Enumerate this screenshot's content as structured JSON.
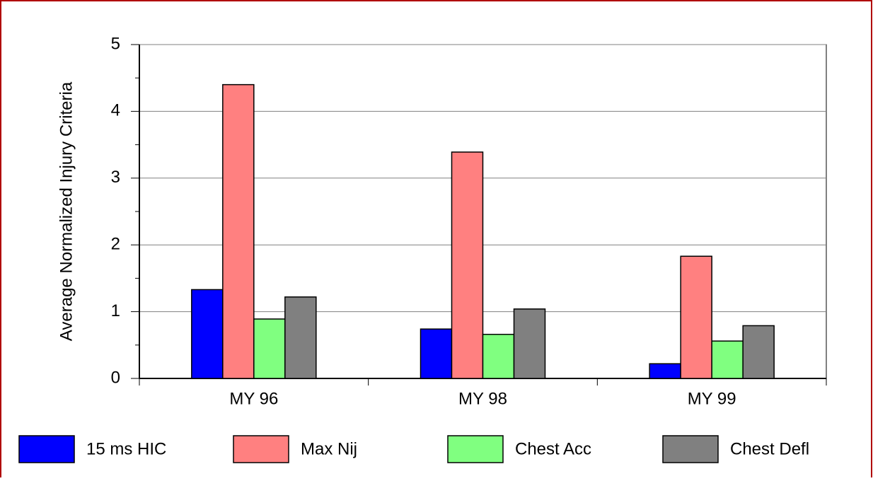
{
  "chart_data": {
    "type": "bar",
    "y_label": "Average Normalized Injury Criteria",
    "categories": [
      "MY 96",
      "MY 98",
      "MY 99"
    ],
    "series": [
      {
        "name": "15 ms HIC",
        "color": "#0000ff",
        "values": [
          1.33,
          0.74,
          0.22
        ]
      },
      {
        "name": "Max Nij",
        "color": "#ff8080",
        "values": [
          4.4,
          3.39,
          1.83
        ]
      },
      {
        "name": "Chest Acc",
        "color": "#80ff80",
        "values": [
          0.89,
          0.66,
          0.56
        ]
      },
      {
        "name": "Chest Defl",
        "color": "#808080",
        "values": [
          1.22,
          1.04,
          0.79
        ]
      }
    ],
    "ylim": [
      0,
      5
    ],
    "yticks": [
      0,
      1,
      2,
      3,
      4,
      5
    ],
    "grid": true,
    "legend": "bottom"
  }
}
